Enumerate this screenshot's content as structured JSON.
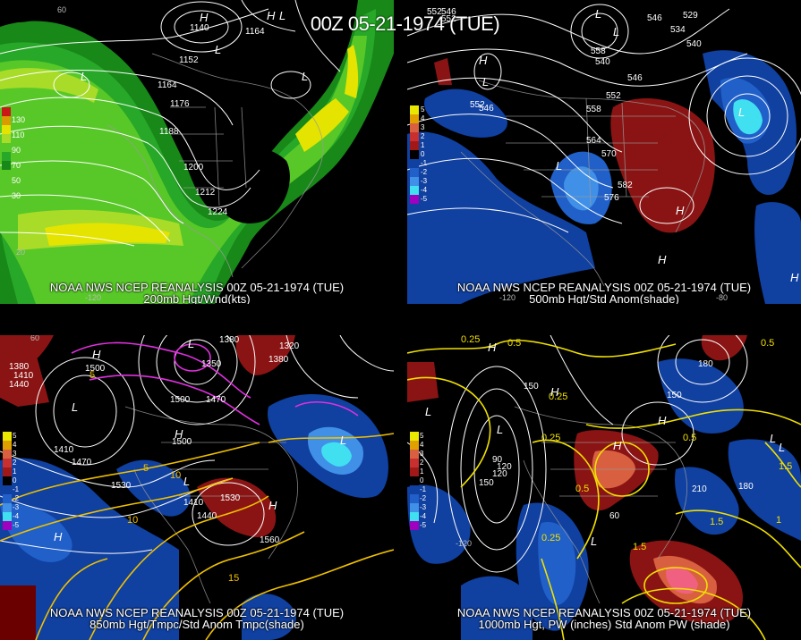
{
  "header": {
    "title": "00Z 05-21-1974 (TUE)"
  },
  "panels": {
    "top_left": {
      "caption_line1": "NOAA NWS NCEP REANALYSIS 00Z 05-21-1974 (TUE)",
      "caption_line2": "200mb Hgt/Wnd(kts)",
      "legend": [
        "130",
        "110",
        "90",
        "70",
        "50",
        "30",
        "20"
      ],
      "legend_colors": [
        "#c81818",
        "#d89c00",
        "#e4e400",
        "#a8dc28",
        "#58c828",
        "#28a828",
        "#188818"
      ],
      "contour_labels": [
        "1140",
        "1152",
        "1164",
        "1164",
        "1176",
        "1188",
        "1200",
        "1212",
        "1224"
      ],
      "centers": [
        "H",
        "H",
        "L",
        "L",
        "L",
        "L"
      ],
      "lon_labels": [
        "-120",
        "60"
      ],
      "lat_labels": [
        "20"
      ]
    },
    "top_right": {
      "caption_line1": "NOAA NWS NCEP REANALYSIS 00Z 05-21-1974 (TUE)",
      "caption_line2": "500mb Hgt/Std Anom(shade)",
      "legend": [
        "5",
        "4",
        "3",
        "2",
        "1",
        "0",
        "-1",
        "-2",
        "-3",
        "-4",
        "-5"
      ],
      "legend_colors": [
        "#e8e800",
        "#e0a000",
        "#d86040",
        "#c83030",
        "#a01818",
        "#000000",
        "#1040a0",
        "#2060c8",
        "#4090e8",
        "#40e0f0",
        "#a000c0"
      ],
      "contour_labels": [
        "546",
        "552",
        "546",
        "552",
        "558",
        "546",
        "552",
        "558",
        "564",
        "570",
        "576",
        "582",
        "540",
        "534",
        "529",
        "540",
        "546",
        "552"
      ],
      "centers": [
        "H",
        "L",
        "L",
        "L",
        "H",
        "H",
        "L",
        "H",
        "L"
      ],
      "lon_labels": [
        "-120",
        "-80"
      ]
    },
    "bottom_left": {
      "caption_line1": "NOAA NWS NCEP REANALYSIS 00Z 05-21-1974 (TUE)",
      "caption_line2": "850mb Hgt/Tmpc/Std Anom Tmpc(shade)",
      "legend": [
        "5",
        "4",
        "3",
        "2",
        "1",
        "0",
        "-1",
        "-2",
        "-3",
        "-4",
        "-5"
      ],
      "contour_labels": [
        "1380",
        "1410",
        "1440",
        "1500",
        "1410",
        "1470",
        "1530",
        "1500",
        "1470",
        "1440",
        "1410",
        "1530",
        "1560",
        "1380",
        "1350",
        "1320",
        "1380",
        "1500"
      ],
      "temp_labels": [
        "10",
        "15",
        "5",
        "10",
        "5"
      ],
      "centers": [
        "H",
        "H",
        "L",
        "L",
        "L",
        "H",
        "L",
        "H"
      ],
      "lon_labels": [
        "60"
      ]
    },
    "bottom_right": {
      "caption_line1": "NOAA NWS NCEP REANALYSIS 00Z 05-21-1974 (TUE)",
      "caption_line2": "1000mb Hgt, PW (inches) Std Anom PW (shade)",
      "legend": [
        "5",
        "4",
        "3",
        "2",
        "1",
        "0",
        "-1",
        "-2",
        "-3",
        "-4",
        "-5"
      ],
      "contour_labels": [
        "0.5",
        "0.25",
        "0.5",
        "150",
        "120",
        "90",
        "120",
        "150",
        "0.25",
        "180",
        "150",
        "0.5",
        "1",
        "1.5",
        "0.25",
        "210",
        "180",
        "1.5",
        "0.5",
        "0.25",
        "1.5",
        "60"
      ],
      "centers": [
        "H",
        "L",
        "H",
        "L",
        "H",
        "L",
        "L",
        "L",
        "H"
      ],
      "lon_labels": [
        "-120"
      ]
    }
  }
}
